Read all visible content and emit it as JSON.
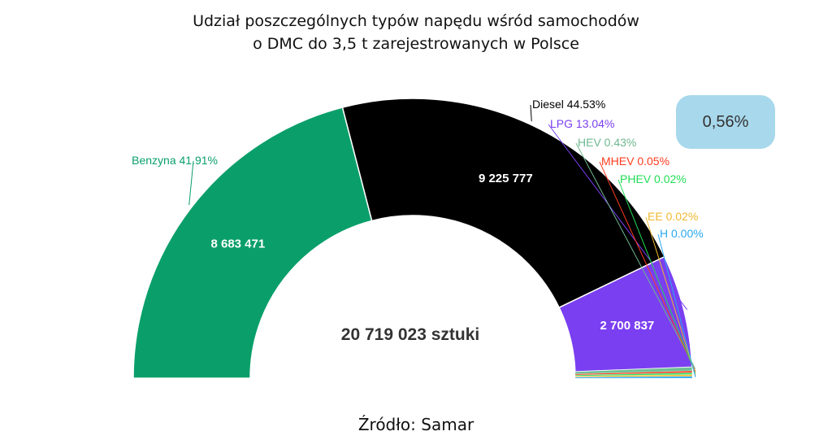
{
  "chart_data": {
    "type": "pie",
    "title_lines": [
      "Udział poszczególnych typów napędu wśród samochodów",
      "o DMC do 3,5 t zarejestrowanych w Polsce"
    ],
    "total_label": "20 719 023 sztuki",
    "highlight_badge": "0,56%",
    "source": "Źródło: Samar",
    "series": [
      {
        "name": "Benzyna",
        "label": "Benzyna 41.91%",
        "percent": 41.91,
        "value_label": "8 683 471",
        "color": "#0a9f6a"
      },
      {
        "name": "Diesel",
        "label": "Diesel 44.53%",
        "percent": 44.53,
        "value_label": "9 225 777",
        "color": "#000000"
      },
      {
        "name": "LPG",
        "label": "LPG 13.04%",
        "percent": 13.04,
        "value_label": "2 700 837",
        "color": "#7a3ff0"
      },
      {
        "name": "HEV",
        "label": "HEV 0.43%",
        "percent": 0.43,
        "value_label": "",
        "color": "#6fbf95"
      },
      {
        "name": "MHEV",
        "label": "MHEV 0.05%",
        "percent": 0.05,
        "value_label": "",
        "color": "#ff3b1f"
      },
      {
        "name": "PHEV",
        "label": "PHEV 0.02%",
        "percent": 0.02,
        "value_label": "",
        "color": "#33dd66"
      },
      {
        "name": "EE",
        "label": "EE 0.02%",
        "percent": 0.02,
        "value_label": "",
        "color": "#f0c030"
      },
      {
        "name": "H",
        "label": "H 0.00%",
        "percent": 0.0,
        "value_label": "",
        "color": "#2aa8f0"
      }
    ]
  }
}
